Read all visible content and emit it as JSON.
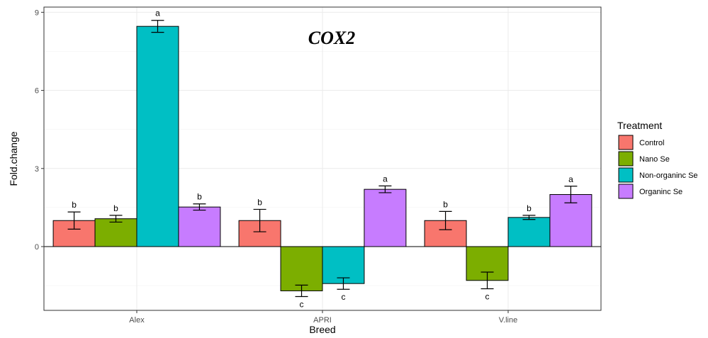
{
  "chart_data": {
    "type": "bar",
    "title": "COX2",
    "xlabel": "Breed",
    "ylabel": "Fold.change",
    "categories": [
      "Alex",
      "APRI",
      "V.line"
    ],
    "ylim": [
      -2.45,
      9.2
    ],
    "yticks": [
      0,
      3,
      6,
      9
    ],
    "grid": true,
    "legend": {
      "title": "Treatment",
      "position": "right"
    },
    "series": [
      {
        "name": "Control",
        "color": "#F8766D",
        "values": [
          1.0,
          1.0,
          1.0
        ],
        "err": [
          0.33,
          0.43,
          0.35
        ],
        "labels": [
          "b",
          "b",
          "b"
        ]
      },
      {
        "name": "Nano Se",
        "color": "#7CAE00",
        "values": [
          1.07,
          -1.7,
          -1.3
        ],
        "err": [
          0.13,
          0.22,
          0.32
        ],
        "labels": [
          "b",
          "c",
          "c"
        ]
      },
      {
        "name": "Non-organinc Se",
        "color": "#00BFC4",
        "values": [
          8.46,
          -1.42,
          1.12
        ],
        "err": [
          0.23,
          0.22,
          0.08
        ],
        "labels": [
          "a",
          "c",
          "b"
        ]
      },
      {
        "name": "Organinc Se",
        "color": "#C77CFF",
        "values": [
          1.52,
          2.2,
          2.0
        ],
        "err": [
          0.12,
          0.13,
          0.32
        ],
        "labels": [
          "b",
          "a",
          "a"
        ]
      }
    ]
  }
}
